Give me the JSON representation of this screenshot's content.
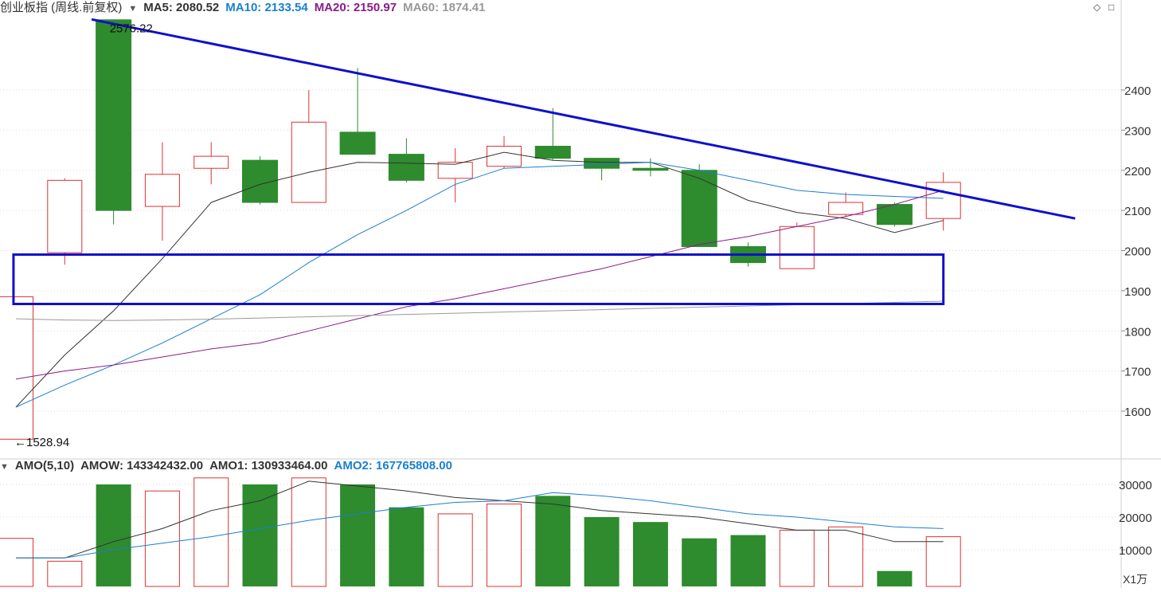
{
  "header": {
    "title": "创业板指 (周线.前复权)",
    "ma5": "MA5: 2080.52",
    "ma10": "MA10: 2133.54",
    "ma20": "MA20: 2150.97",
    "ma60": "MA60: 1874.41",
    "colors": {
      "ma5": "#333333",
      "ma10": "#1a7fd0",
      "ma20": "#8a1c8a",
      "ma60": "#999999"
    }
  },
  "volume_header": {
    "label": "AMO(5,10)",
    "amow": "AMOW: 143342432.00",
    "amo1": "AMO1: 130933464.00",
    "amo2": "AMO2: 167765808.00"
  },
  "annotations": {
    "high": "2576.22",
    "low": "←1528.94"
  },
  "unit_label": "X1万",
  "controls": {
    "diamond_icon": "◇",
    "maximize_icon": "□"
  },
  "chart_data": [
    {
      "type": "candlestick",
      "ylim": [
        1530,
        2576
      ],
      "yticks": [
        1600,
        1700,
        1800,
        1900,
        2000,
        2100,
        2200,
        2300,
        2400
      ],
      "up_color": "#dd3333",
      "down_color": "#2e8b2e",
      "candles": [
        {
          "o": 1530,
          "c": 1885,
          "h": 1885,
          "l": 1529
        },
        {
          "o": 1995,
          "c": 2175,
          "h": 2180,
          "l": 1965
        },
        {
          "o": 2575,
          "c": 2100,
          "h": 2576,
          "l": 2065
        },
        {
          "o": 2110,
          "c": 2190,
          "h": 2270,
          "l": 2025
        },
        {
          "o": 2205,
          "c": 2235,
          "h": 2270,
          "l": 2165
        },
        {
          "o": 2225,
          "c": 2120,
          "h": 2235,
          "l": 2115
        },
        {
          "o": 2120,
          "c": 2320,
          "h": 2400,
          "l": 2120
        },
        {
          "o": 2295,
          "c": 2240,
          "h": 2455,
          "l": 2240
        },
        {
          "o": 2240,
          "c": 2175,
          "h": 2280,
          "l": 2170
        },
        {
          "o": 2180,
          "c": 2220,
          "h": 2255,
          "l": 2120
        },
        {
          "o": 2210,
          "c": 2260,
          "h": 2285,
          "l": 2205
        },
        {
          "o": 2260,
          "c": 2230,
          "h": 2355,
          "l": 2225
        },
        {
          "o": 2230,
          "c": 2205,
          "h": 2230,
          "l": 2175
        },
        {
          "o": 2205,
          "c": 2200,
          "h": 2230,
          "l": 2185
        },
        {
          "o": 2200,
          "c": 2010,
          "h": 2215,
          "l": 2010
        },
        {
          "o": 2010,
          "c": 1970,
          "h": 2020,
          "l": 1960
        },
        {
          "o": 1955,
          "c": 2060,
          "h": 2070,
          "l": 1955
        },
        {
          "o": 2090,
          "c": 2120,
          "h": 2145,
          "l": 2085
        },
        {
          "o": 2115,
          "c": 2065,
          "h": 2120,
          "l": 2060
        },
        {
          "o": 2080,
          "c": 2170,
          "h": 2195,
          "l": 2050
        }
      ],
      "ma_lines": [
        {
          "name": "MA5",
          "color": "#333333",
          "start": 0,
          "values": [
            1610,
            1740,
            1850,
            1980,
            2120,
            2165,
            2195,
            2220,
            2218,
            2215,
            2245,
            2225,
            2220,
            2220,
            2180,
            2125,
            2095,
            2080,
            2045,
            2075
          ]
        },
        {
          "name": "MA10",
          "color": "#1a7fd0",
          "start": 0,
          "values": [
            1610,
            1665,
            1715,
            1770,
            1830,
            1890,
            1970,
            2040,
            2100,
            2165,
            2205,
            2210,
            2215,
            2220,
            2200,
            2175,
            2150,
            2140,
            2135,
            2130
          ]
        },
        {
          "name": "MA20",
          "color": "#8a1c8a",
          "start": 0,
          "values": [
            1680,
            1700,
            1715,
            1735,
            1755,
            1770,
            1800,
            1830,
            1860,
            1880,
            1905,
            1930,
            1955,
            1985,
            2015,
            2035,
            2060,
            2085,
            2115,
            2150
          ]
        },
        {
          "name": "MA60",
          "color": "#999999",
          "start": 0,
          "values": [
            1830,
            1827,
            1826,
            1827,
            1829,
            1832,
            1835,
            1838,
            1841,
            1844,
            1847,
            1850,
            1853,
            1856,
            1859,
            1862,
            1865,
            1868,
            1871,
            1874
          ]
        }
      ],
      "trendline": {
        "from": {
          "i": 1.55,
          "v": 2576
        },
        "to": {
          "i": 21.7,
          "v": 2080
        },
        "color": "#1010cc"
      },
      "box": {
        "from_i": -0.05,
        "to_i": 19.0,
        "top": 1990,
        "bottom": 1867,
        "color": "#1010cc"
      }
    },
    {
      "type": "bar",
      "ylim": [
        0,
        32000
      ],
      "yticks": [
        10000,
        20000,
        30000
      ],
      "ytick_labels": [
        "10000",
        "20000",
        "30000"
      ],
      "values": [
        13500,
        6500,
        30000,
        28000,
        32000,
        30000,
        32000,
        30000,
        23000,
        21000,
        24000,
        26500,
        20000,
        18500,
        13500,
        14500,
        16000,
        17000,
        3500,
        14000
      ],
      "colors": [
        "up",
        "up",
        "down",
        "up",
        "up",
        "down",
        "up",
        "down",
        "down",
        "up",
        "up",
        "down",
        "down",
        "down",
        "down",
        "down",
        "up",
        "up",
        "down",
        "up"
      ],
      "series": [
        {
          "name": "AMO1",
          "color": "#333333",
          "values": [
            7500,
            7500,
            12500,
            16500,
            22000,
            25000,
            31000,
            29500,
            28000,
            26000,
            25000,
            24000,
            22000,
            21000,
            20000,
            18000,
            16000,
            16000,
            12500,
            12500
          ]
        },
        {
          "name": "AMO2",
          "color": "#1a7fd0",
          "values": [
            7500,
            7500,
            10000,
            12000,
            14000,
            16500,
            19000,
            21000,
            23000,
            24500,
            25000,
            27500,
            26500,
            25000,
            23000,
            21000,
            20000,
            18500,
            17000,
            16500
          ]
        }
      ]
    }
  ]
}
